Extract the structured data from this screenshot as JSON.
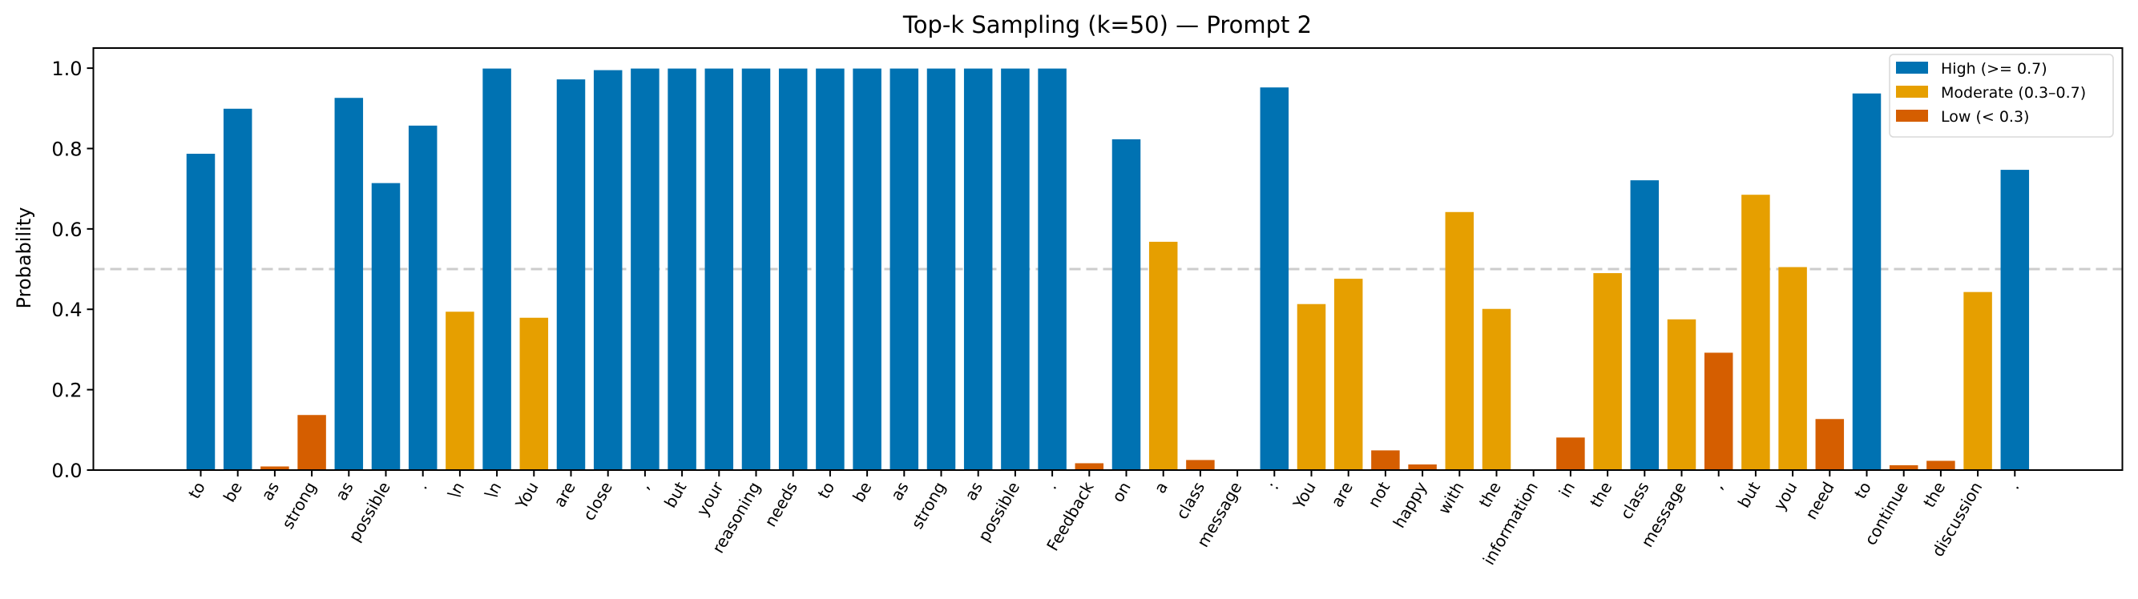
{
  "chart_data": {
    "type": "bar",
    "title": "Top-k Sampling (k=50) — Prompt 2",
    "xlabel": "",
    "ylabel": "Probability",
    "ylim": [
      0,
      1.05
    ],
    "yticks": [
      "0.0",
      "0.2",
      "0.4",
      "0.6",
      "0.8",
      "1.0"
    ],
    "ytick_values": [
      0,
      0.2,
      0.4,
      0.6,
      0.8,
      1.0
    ],
    "reference_line": {
      "y": 0.5,
      "style": "dashed",
      "color": "#cccccc"
    },
    "grid": false,
    "legend_position": "top-right",
    "legend": [
      {
        "label": "High (>= 0.7)",
        "color": "#0072b2"
      },
      {
        "label": "Moderate (0.3–0.7)",
        "color": "#e69f00"
      },
      {
        "label": "Low (< 0.3)",
        "color": "#d55e00"
      }
    ],
    "thresholds": {
      "high": 0.7,
      "low": 0.3
    },
    "categories": [
      "to",
      "be",
      "as",
      "strong",
      "as",
      "possible",
      ".",
      "\\n",
      "\\n",
      "You",
      "are",
      "close",
      ",",
      "but",
      "your",
      "reasoning",
      "needs",
      "to",
      "be",
      "as",
      "strong",
      "as",
      "possible",
      ".",
      "Feedback",
      "on",
      "a",
      "class",
      "message",
      ":",
      "You",
      "are",
      "not",
      "happy",
      "with",
      "the",
      "information",
      "in",
      "the",
      "class",
      "message",
      ",",
      "but",
      "you",
      "need",
      "to",
      "continue",
      "the",
      "discussion",
      "."
    ],
    "values": [
      0.787,
      0.899,
      0.009,
      0.137,
      0.926,
      0.714,
      0.857,
      0.394,
      0.999,
      0.379,
      0.972,
      0.995,
      0.999,
      0.999,
      0.999,
      0.999,
      0.999,
      0.999,
      0.999,
      0.999,
      0.999,
      0.999,
      0.999,
      0.999,
      0.017,
      0.823,
      0.568,
      0.025,
      0.001,
      0.952,
      0.413,
      0.476,
      0.049,
      0.014,
      0.642,
      0.401,
      0.001,
      0.081,
      0.49,
      0.721,
      0.375,
      0.292,
      0.685,
      0.505,
      0.127,
      0.937,
      0.012,
      0.023,
      0.443,
      0.747
    ]
  }
}
